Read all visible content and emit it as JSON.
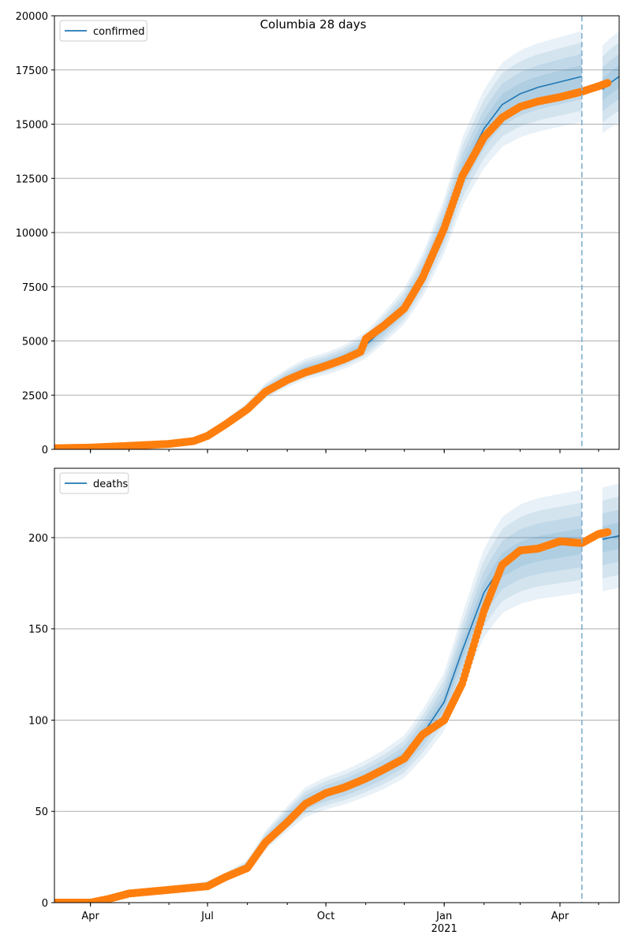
{
  "title": "Columbia 28 days",
  "colors": {
    "line": "#1f77b4",
    "points": "#ff7f0e",
    "band": "#1f77b4",
    "grid": "#b0b0b0",
    "vline": "#7fadcf"
  },
  "x_axis": {
    "ticks": [
      {
        "date": "2020-04-01",
        "label": "Apr",
        "sublabel": ""
      },
      {
        "date": "2020-07-01",
        "label": "Jul",
        "sublabel": ""
      },
      {
        "date": "2020-10-01",
        "label": "Oct",
        "sublabel": ""
      },
      {
        "date": "2021-01-01",
        "label": "Jan",
        "sublabel": "2021"
      },
      {
        "date": "2021-04-01",
        "label": "Apr",
        "sublabel": ""
      }
    ],
    "range": [
      "2020-03-04",
      "2021-05-17"
    ],
    "forecast_start": "2021-04-18"
  },
  "chart_data": [
    {
      "type": "line",
      "legend": "confirmed",
      "legend_position": "top-left",
      "ylim": [
        0,
        20000
      ],
      "yticks": [
        0,
        2500,
        5000,
        7500,
        10000,
        12500,
        15000,
        17500,
        20000
      ],
      "grid": "horizontal",
      "fit": [
        [
          "2020-03-04",
          60
        ],
        [
          "2020-04-01",
          80
        ],
        [
          "2020-05-01",
          160
        ],
        [
          "2020-06-01",
          260
        ],
        [
          "2020-06-20",
          400
        ],
        [
          "2020-07-01",
          650
        ],
        [
          "2020-07-15",
          1200
        ],
        [
          "2020-08-01",
          1900
        ],
        [
          "2020-08-15",
          2700
        ],
        [
          "2020-09-01",
          3300
        ],
        [
          "2020-09-15",
          3700
        ],
        [
          "2020-10-01",
          3950
        ],
        [
          "2020-10-15",
          4250
        ],
        [
          "2020-11-01",
          4800
        ],
        [
          "2020-11-15",
          5600
        ],
        [
          "2020-12-01",
          6600
        ],
        [
          "2020-12-15",
          8000
        ],
        [
          "2021-01-01",
          10300
        ],
        [
          "2021-01-15",
          12800
        ],
        [
          "2021-02-01",
          14800
        ],
        [
          "2021-02-15",
          15900
        ],
        [
          "2021-03-01",
          16400
        ],
        [
          "2021-03-15",
          16700
        ],
        [
          "2021-04-01",
          16950
        ],
        [
          "2021-04-18",
          17200
        ]
      ],
      "forecast": [
        [
          "2021-05-04",
          16600
        ],
        [
          "2021-05-10",
          16900
        ],
        [
          "2021-05-17",
          17200
        ]
      ],
      "band_spread": 0.12,
      "observed": [
        [
          "2020-03-04",
          50
        ],
        [
          "2020-04-01",
          80
        ],
        [
          "2020-05-01",
          160
        ],
        [
          "2020-06-01",
          250
        ],
        [
          "2020-06-20",
          380
        ],
        [
          "2020-07-01",
          620
        ],
        [
          "2020-07-15",
          1150
        ],
        [
          "2020-08-01",
          1850
        ],
        [
          "2020-08-15",
          2650
        ],
        [
          "2020-09-01",
          3200
        ],
        [
          "2020-09-15",
          3550
        ],
        [
          "2020-10-01",
          3850
        ],
        [
          "2020-10-15",
          4150
        ],
        [
          "2020-10-28",
          4500
        ],
        [
          "2020-11-01",
          5100
        ],
        [
          "2020-11-15",
          5700
        ],
        [
          "2020-12-01",
          6500
        ],
        [
          "2020-12-15",
          7900
        ],
        [
          "2021-01-01",
          10200
        ],
        [
          "2021-01-15",
          12600
        ],
        [
          "2021-02-01",
          14400
        ],
        [
          "2021-02-15",
          15300
        ],
        [
          "2021-03-01",
          15800
        ],
        [
          "2021-03-15",
          16050
        ],
        [
          "2021-04-01",
          16250
        ],
        [
          "2021-04-18",
          16500
        ],
        [
          "2021-05-01",
          16750
        ],
        [
          "2021-05-08",
          16900
        ]
      ]
    },
    {
      "type": "line",
      "legend": "deaths",
      "legend_position": "top-left",
      "ylim": [
        0,
        238
      ],
      "yticks": [
        0,
        50,
        100,
        150,
        200
      ],
      "grid": "horizontal",
      "fit": [
        [
          "2020-03-04",
          0
        ],
        [
          "2020-04-01",
          1
        ],
        [
          "2020-05-01",
          5
        ],
        [
          "2020-06-01",
          7
        ],
        [
          "2020-07-01",
          10
        ],
        [
          "2020-07-15",
          14
        ],
        [
          "2020-08-01",
          20
        ],
        [
          "2020-08-15",
          34
        ],
        [
          "2020-09-01",
          46
        ],
        [
          "2020-09-15",
          55
        ],
        [
          "2020-10-01",
          60
        ],
        [
          "2020-10-15",
          63
        ],
        [
          "2020-11-01",
          68
        ],
        [
          "2020-11-15",
          73
        ],
        [
          "2020-12-01",
          80
        ],
        [
          "2020-12-15",
          92
        ],
        [
          "2021-01-01",
          110
        ],
        [
          "2021-01-15",
          138
        ],
        [
          "2021-02-01",
          170
        ],
        [
          "2021-02-15",
          185
        ],
        [
          "2021-03-01",
          191
        ],
        [
          "2021-03-15",
          194
        ],
        [
          "2021-04-01",
          196
        ],
        [
          "2021-04-18",
          198
        ]
      ],
      "forecast": [
        [
          "2021-05-04",
          199
        ],
        [
          "2021-05-10",
          200
        ],
        [
          "2021-05-17",
          201
        ]
      ],
      "band_spread": 0.14,
      "observed": [
        [
          "2020-03-04",
          0
        ],
        [
          "2020-04-01",
          0
        ],
        [
          "2020-04-15",
          2
        ],
        [
          "2020-05-01",
          5
        ],
        [
          "2020-06-01",
          7
        ],
        [
          "2020-07-01",
          9
        ],
        [
          "2020-07-15",
          14
        ],
        [
          "2020-08-01",
          19
        ],
        [
          "2020-08-15",
          33
        ],
        [
          "2020-09-01",
          44
        ],
        [
          "2020-09-15",
          54
        ],
        [
          "2020-10-01",
          60
        ],
        [
          "2020-10-15",
          63
        ],
        [
          "2020-11-01",
          68
        ],
        [
          "2020-11-15",
          73
        ],
        [
          "2020-12-01",
          79
        ],
        [
          "2020-12-15",
          92
        ],
        [
          "2021-01-01",
          100
        ],
        [
          "2021-01-15",
          120
        ],
        [
          "2021-02-01",
          160
        ],
        [
          "2021-02-15",
          185
        ],
        [
          "2021-03-01",
          193
        ],
        [
          "2021-03-15",
          194
        ],
        [
          "2021-04-01",
          198
        ],
        [
          "2021-04-18",
          197
        ],
        [
          "2021-05-01",
          202
        ],
        [
          "2021-05-08",
          203
        ]
      ]
    }
  ]
}
